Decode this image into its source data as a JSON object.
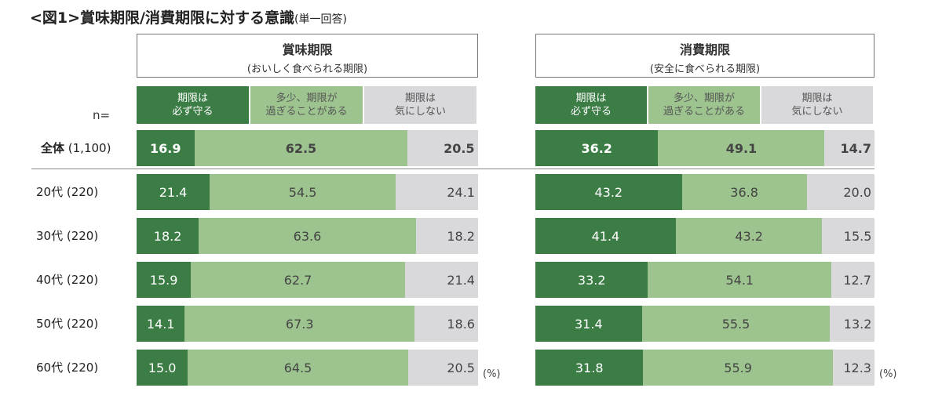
{
  "title": "<図1>賞味期限/消費期限に対する意識",
  "title_note": "(単一回答)",
  "n_label": "n=",
  "unit": "(%)",
  "colors": [
    "#3b7d45",
    "#9dc48f",
    "#d9d8db"
  ],
  "categories": [
    "期限は\n必ず守る",
    "多少、期限が\n過ぎることがある",
    "期限は\n気にしない"
  ],
  "rows": [
    {
      "label": "全体",
      "n": "(1,100)",
      "bold": true
    },
    {
      "label": "20代",
      "n": "(220)"
    },
    {
      "label": "30代",
      "n": "(220)"
    },
    {
      "label": "40代",
      "n": "(220)"
    },
    {
      "label": "50代",
      "n": "(220)"
    },
    {
      "label": "60代",
      "n": "(220)"
    }
  ],
  "chart_data": [
    {
      "type": "bar",
      "stacked": true,
      "orientation": "horizontal",
      "title": "賞味期限",
      "subtitle": "(おいしく食べられる期限)",
      "series": [
        {
          "name": "期限は必ず守る",
          "values": [
            16.9,
            21.4,
            18.2,
            15.9,
            14.1,
            15.0
          ]
        },
        {
          "name": "多少、期限が過ぎることがある",
          "values": [
            62.5,
            54.5,
            63.6,
            62.7,
            67.3,
            64.5
          ]
        },
        {
          "name": "期限は気にしない",
          "values": [
            20.5,
            24.1,
            18.2,
            21.4,
            18.6,
            20.5
          ]
        }
      ]
    },
    {
      "type": "bar",
      "stacked": true,
      "orientation": "horizontal",
      "title": "消費期限",
      "subtitle": "(安全に食べられる期限)",
      "series": [
        {
          "name": "期限は必ず守る",
          "values": [
            36.2,
            43.2,
            41.4,
            33.2,
            31.4,
            31.8
          ]
        },
        {
          "name": "多少、期限が過ぎることがある",
          "values": [
            49.1,
            36.8,
            43.2,
            54.1,
            55.5,
            55.9
          ]
        },
        {
          "name": "期限は気にしない",
          "values": [
            14.7,
            20.0,
            15.5,
            12.7,
            13.2,
            12.3
          ]
        }
      ]
    }
  ]
}
